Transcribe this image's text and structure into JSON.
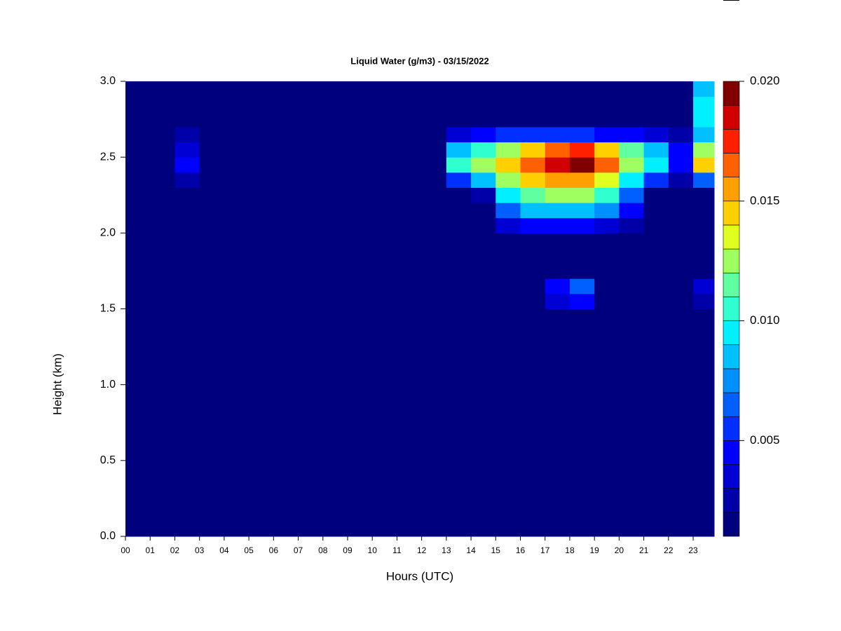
{
  "chart_data": {
    "type": "heatmap",
    "title": "Liquid Water (g/m3) - 03/15/2022",
    "xlabel": "Hours (UTC)",
    "ylabel": "Height (km)",
    "x": [
      0.5,
      1.5,
      2.5,
      3.5,
      4.5,
      5.5,
      6.5,
      7.5,
      8.5,
      9.5,
      10.5,
      11.5,
      12.5,
      13.5,
      14.5,
      15.5,
      16.5,
      17.5,
      18.5,
      19.5,
      20.5,
      21.5,
      22.5,
      23.5
    ],
    "y": [
      0.05,
      0.15,
      0.25,
      0.35,
      0.45,
      0.55,
      0.65,
      0.75,
      0.85,
      0.95,
      1.05,
      1.15,
      1.25,
      1.35,
      1.45,
      1.55,
      1.65,
      1.75,
      1.85,
      1.95,
      2.05,
      2.15,
      2.25,
      2.35,
      2.45,
      2.55,
      2.65,
      2.75,
      2.85,
      2.95
    ],
    "z": [
      [
        0.001,
        0.001,
        0.001,
        0.001,
        0.001,
        0.001,
        0.001,
        0.001,
        0.001,
        0.001,
        0.001,
        0.001,
        0.001,
        0.001,
        0.001,
        0.001,
        0.001,
        0.001,
        0.001,
        0.001,
        0.001,
        0.001,
        0.001,
        0.001
      ],
      [
        0.001,
        0.001,
        0.001,
        0.001,
        0.001,
        0.001,
        0.001,
        0.001,
        0.001,
        0.001,
        0.001,
        0.001,
        0.001,
        0.001,
        0.001,
        0.001,
        0.001,
        0.001,
        0.001,
        0.001,
        0.001,
        0.001,
        0.001,
        0.001
      ],
      [
        0.001,
        0.001,
        0.001,
        0.001,
        0.001,
        0.001,
        0.001,
        0.001,
        0.001,
        0.001,
        0.001,
        0.001,
        0.001,
        0.001,
        0.001,
        0.001,
        0.001,
        0.001,
        0.001,
        0.001,
        0.001,
        0.001,
        0.001,
        0.001
      ],
      [
        0.001,
        0.001,
        0.001,
        0.001,
        0.001,
        0.001,
        0.001,
        0.001,
        0.001,
        0.001,
        0.001,
        0.001,
        0.001,
        0.001,
        0.001,
        0.001,
        0.001,
        0.001,
        0.001,
        0.001,
        0.001,
        0.001,
        0.001,
        0.001
      ],
      [
        0.001,
        0.001,
        0.001,
        0.001,
        0.001,
        0.001,
        0.001,
        0.001,
        0.001,
        0.001,
        0.001,
        0.001,
        0.001,
        0.001,
        0.001,
        0.001,
        0.001,
        0.001,
        0.001,
        0.001,
        0.001,
        0.001,
        0.001,
        0.001
      ],
      [
        0.001,
        0.001,
        0.001,
        0.001,
        0.001,
        0.001,
        0.001,
        0.001,
        0.001,
        0.001,
        0.001,
        0.001,
        0.001,
        0.001,
        0.001,
        0.001,
        0.001,
        0.001,
        0.001,
        0.001,
        0.001,
        0.001,
        0.001,
        0.001
      ],
      [
        0.001,
        0.001,
        0.001,
        0.001,
        0.001,
        0.001,
        0.001,
        0.001,
        0.001,
        0.001,
        0.001,
        0.001,
        0.001,
        0.001,
        0.001,
        0.001,
        0.001,
        0.001,
        0.001,
        0.001,
        0.001,
        0.001,
        0.001,
        0.001
      ],
      [
        0.001,
        0.001,
        0.001,
        0.001,
        0.001,
        0.001,
        0.001,
        0.001,
        0.001,
        0.001,
        0.001,
        0.001,
        0.001,
        0.001,
        0.001,
        0.001,
        0.001,
        0.001,
        0.001,
        0.001,
        0.001,
        0.001,
        0.001,
        0.001
      ],
      [
        0.001,
        0.001,
        0.001,
        0.001,
        0.001,
        0.001,
        0.001,
        0.001,
        0.001,
        0.001,
        0.001,
        0.001,
        0.001,
        0.001,
        0.001,
        0.001,
        0.001,
        0.001,
        0.001,
        0.001,
        0.001,
        0.001,
        0.001,
        0.001
      ],
      [
        0.001,
        0.001,
        0.001,
        0.001,
        0.001,
        0.001,
        0.001,
        0.001,
        0.001,
        0.001,
        0.001,
        0.001,
        0.001,
        0.001,
        0.001,
        0.001,
        0.001,
        0.001,
        0.001,
        0.001,
        0.001,
        0.001,
        0.001,
        0.001
      ],
      [
        0.001,
        0.001,
        0.001,
        0.001,
        0.001,
        0.001,
        0.001,
        0.001,
        0.001,
        0.001,
        0.001,
        0.001,
        0.001,
        0.001,
        0.001,
        0.001,
        0.001,
        0.001,
        0.001,
        0.001,
        0.001,
        0.001,
        0.001,
        0.001
      ],
      [
        0.001,
        0.001,
        0.001,
        0.001,
        0.001,
        0.001,
        0.001,
        0.001,
        0.001,
        0.001,
        0.001,
        0.001,
        0.001,
        0.001,
        0.001,
        0.001,
        0.001,
        0.001,
        0.001,
        0.001,
        0.001,
        0.001,
        0.001,
        0.001
      ],
      [
        0.001,
        0.001,
        0.001,
        0.001,
        0.001,
        0.001,
        0.001,
        0.001,
        0.001,
        0.001,
        0.001,
        0.001,
        0.001,
        0.001,
        0.001,
        0.001,
        0.001,
        0.001,
        0.001,
        0.001,
        0.001,
        0.001,
        0.001,
        0.001
      ],
      [
        0.001,
        0.001,
        0.001,
        0.001,
        0.001,
        0.001,
        0.001,
        0.001,
        0.001,
        0.001,
        0.001,
        0.001,
        0.001,
        0.001,
        0.001,
        0.001,
        0.001,
        0.001,
        0.001,
        0.001,
        0.001,
        0.001,
        0.001,
        0.001
      ],
      [
        0.001,
        0.001,
        0.001,
        0.001,
        0.001,
        0.001,
        0.001,
        0.001,
        0.001,
        0.001,
        0.001,
        0.001,
        0.001,
        0.001,
        0.001,
        0.001,
        0.001,
        0.001,
        0.001,
        0.001,
        0.001,
        0.001,
        0.001,
        0.001
      ],
      [
        0.001,
        0.001,
        0.001,
        0.001,
        0.001,
        0.001,
        0.001,
        0.001,
        0.001,
        0.001,
        0.001,
        0.001,
        0.001,
        0.001,
        0.001,
        0.001,
        0.001,
        0.003,
        0.004,
        0.001,
        0.001,
        0.001,
        0.001,
        0.002
      ],
      [
        0.001,
        0.001,
        0.001,
        0.001,
        0.001,
        0.001,
        0.001,
        0.001,
        0.001,
        0.001,
        0.001,
        0.001,
        0.001,
        0.001,
        0.001,
        0.001,
        0.001,
        0.004,
        0.006,
        0.001,
        0.001,
        0.001,
        0.001,
        0.003
      ],
      [
        0.001,
        0.001,
        0.001,
        0.001,
        0.001,
        0.001,
        0.001,
        0.001,
        0.001,
        0.001,
        0.001,
        0.001,
        0.001,
        0.001,
        0.001,
        0.001,
        0.001,
        0.001,
        0.001,
        0.001,
        0.001,
        0.001,
        0.001,
        0.001
      ],
      [
        0.001,
        0.001,
        0.001,
        0.001,
        0.001,
        0.001,
        0.001,
        0.001,
        0.001,
        0.001,
        0.001,
        0.001,
        0.001,
        0.001,
        0.001,
        0.001,
        0.001,
        0.001,
        0.001,
        0.001,
        0.001,
        0.001,
        0.001,
        0.001
      ],
      [
        0.001,
        0.001,
        0.001,
        0.001,
        0.001,
        0.001,
        0.001,
        0.001,
        0.001,
        0.001,
        0.001,
        0.001,
        0.001,
        0.001,
        0.001,
        0.001,
        0.001,
        0.001,
        0.001,
        0.001,
        0.001,
        0.001,
        0.001,
        0.001
      ],
      [
        0.001,
        0.001,
        0.001,
        0.001,
        0.001,
        0.001,
        0.001,
        0.001,
        0.001,
        0.001,
        0.001,
        0.001,
        0.001,
        0.001,
        0.001,
        0.003,
        0.004,
        0.004,
        0.004,
        0.003,
        0.002,
        0.001,
        0.001,
        0.001
      ],
      [
        0.001,
        0.001,
        0.001,
        0.001,
        0.001,
        0.001,
        0.001,
        0.001,
        0.001,
        0.001,
        0.001,
        0.001,
        0.001,
        0.001,
        0.001,
        0.006,
        0.008,
        0.008,
        0.008,
        0.007,
        0.004,
        0.001,
        0.001,
        0.001
      ],
      [
        0.001,
        0.001,
        0.001,
        0.001,
        0.001,
        0.001,
        0.001,
        0.001,
        0.001,
        0.001,
        0.001,
        0.001,
        0.001,
        0.001,
        0.002,
        0.009,
        0.011,
        0.012,
        0.012,
        0.01,
        0.006,
        0.001,
        0.001,
        0.001
      ],
      [
        0.001,
        0.001,
        0.002,
        0.001,
        0.001,
        0.001,
        0.001,
        0.001,
        0.001,
        0.001,
        0.001,
        0.001,
        0.001,
        0.005,
        0.008,
        0.012,
        0.014,
        0.015,
        0.015,
        0.013,
        0.009,
        0.005,
        0.002,
        0.006
      ],
      [
        0.001,
        0.001,
        0.004,
        0.001,
        0.001,
        0.001,
        0.001,
        0.001,
        0.001,
        0.001,
        0.001,
        0.001,
        0.001,
        0.01,
        0.012,
        0.014,
        0.016,
        0.018,
        0.019,
        0.016,
        0.012,
        0.009,
        0.004,
        0.014
      ],
      [
        0.001,
        0.001,
        0.003,
        0.001,
        0.001,
        0.001,
        0.001,
        0.001,
        0.001,
        0.001,
        0.001,
        0.001,
        0.001,
        0.008,
        0.01,
        0.012,
        0.014,
        0.016,
        0.017,
        0.014,
        0.011,
        0.008,
        0.004,
        0.012
      ],
      [
        0.001,
        0.001,
        0.002,
        0.001,
        0.001,
        0.001,
        0.001,
        0.001,
        0.001,
        0.001,
        0.001,
        0.001,
        0.001,
        0.003,
        0.004,
        0.005,
        0.005,
        0.005,
        0.005,
        0.004,
        0.004,
        0.003,
        0.002,
        0.008
      ],
      [
        0.001,
        0.001,
        0.001,
        0.001,
        0.001,
        0.001,
        0.001,
        0.001,
        0.001,
        0.001,
        0.001,
        0.001,
        0.001,
        0.001,
        0.001,
        0.001,
        0.001,
        0.001,
        0.001,
        0.001,
        0.001,
        0.001,
        0.001,
        0.009
      ],
      [
        0.001,
        0.001,
        0.001,
        0.001,
        0.001,
        0.001,
        0.001,
        0.001,
        0.001,
        0.001,
        0.001,
        0.001,
        0.001,
        0.001,
        0.001,
        0.001,
        0.001,
        0.001,
        0.001,
        0.001,
        0.001,
        0.001,
        0.001,
        0.009
      ],
      [
        0.001,
        0.001,
        0.001,
        0.001,
        0.001,
        0.001,
        0.001,
        0.001,
        0.001,
        0.001,
        0.001,
        0.001,
        0.001,
        0.001,
        0.001,
        0.001,
        0.001,
        0.001,
        0.001,
        0.001,
        0.001,
        0.001,
        0.001,
        0.008
      ]
    ],
    "xlim": [
      0,
      23.85
    ],
    "ylim": [
      0,
      3
    ],
    "xticks": [
      {
        "value": 0,
        "label": "00"
      },
      {
        "value": 1,
        "label": "01"
      },
      {
        "value": 2,
        "label": "02"
      },
      {
        "value": 3,
        "label": "03"
      },
      {
        "value": 4,
        "label": "04"
      },
      {
        "value": 5,
        "label": "05"
      },
      {
        "value": 6,
        "label": "06"
      },
      {
        "value": 7,
        "label": "07"
      },
      {
        "value": 8,
        "label": "08"
      },
      {
        "value": 9,
        "label": "09"
      },
      10,
      11,
      12,
      13,
      14,
      15,
      16,
      17,
      18,
      19,
      20,
      21,
      22,
      23
    ],
    "yticks": [
      {
        "value": 0,
        "label": "0.0"
      },
      0.5,
      {
        "value": 1,
        "label": "1.0"
      },
      1.5,
      {
        "value": 2,
        "label": "2.0"
      },
      2.5,
      {
        "value": 3,
        "label": "3.0"
      }
    ],
    "zlim": [
      0.001,
      0.02
    ],
    "zticks": [
      0.005,
      {
        "value": 0.01,
        "label": "0.010"
      },
      0.015,
      {
        "value": 0.02,
        "label": "0.020"
      }
    ],
    "colors": [
      "#00007f",
      "#0000a8",
      "#0000d4",
      "#0000ff",
      "#0030ff",
      "#0060ff",
      "#0090ff",
      "#00c0ff",
      "#00f0ff",
      "#30ffd0",
      "#60ffa0",
      "#a0ff60",
      "#e0ff20",
      "#ffd000",
      "#ffa000",
      "#ff6000",
      "#ff2000",
      "#d00000",
      "#800000"
    ]
  }
}
